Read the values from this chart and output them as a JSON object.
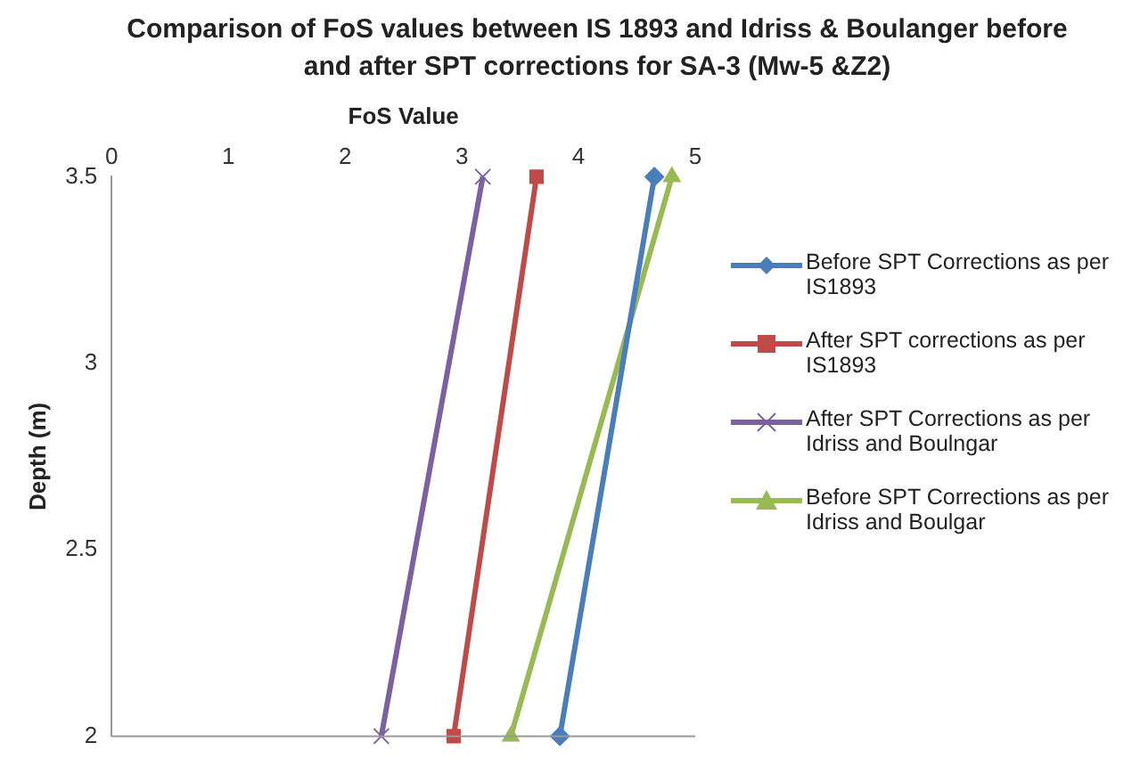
{
  "chart_data": {
    "type": "line",
    "title": "Comparison of FoS values between IS 1893 and Idriss & Boulanger before and after SPT corrections for SA-3 (Mw-5 &Z2)",
    "xlabel": "FoS Value",
    "ylabel": "Depth (m)",
    "xlim": [
      0,
      5
    ],
    "xticks": [
      0,
      1,
      2,
      3,
      4,
      5
    ],
    "ylim": [
      2,
      3.5
    ],
    "yticks": [
      2,
      2.5,
      3,
      3.5
    ],
    "grid": false,
    "legend": "right",
    "line_style": "solid",
    "series": [
      {
        "name": "Before SPT Corrections as per IS1893",
        "color": "#4a7ebb",
        "marker": "diamond",
        "x": [
          4.65,
          3.84
        ],
        "values": [
          3.5,
          2
        ]
      },
      {
        "name": "After SPT corrections as per IS1893",
        "color": "#be4b48",
        "marker": "square",
        "x": [
          3.64,
          2.93
        ],
        "values": [
          3.5,
          2
        ]
      },
      {
        "name": "After SPT Corrections as per Idriss and Boulngar",
        "color": "#7d60a0",
        "marker": "cross",
        "x": [
          3.18,
          2.31
        ],
        "values": [
          3.5,
          2
        ]
      },
      {
        "name": "Before SPT Corrections as per Idriss and Boulgar",
        "color": "#98b954",
        "marker": "triangle",
        "x": [
          4.8,
          3.42
        ],
        "values": [
          3.5,
          2
        ]
      }
    ]
  }
}
